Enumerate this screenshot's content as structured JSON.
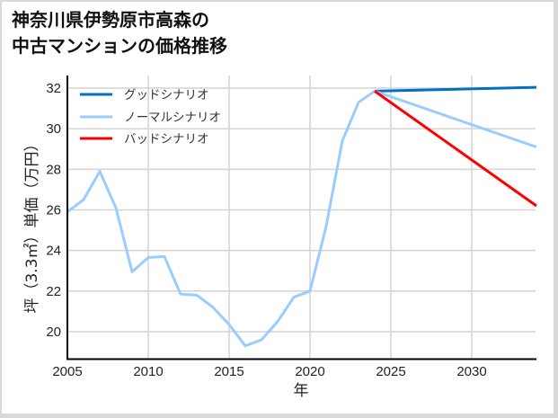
{
  "title": {
    "line1": "神奈川県伊勢原市高森の",
    "line2": "中古マンションの価格推移"
  },
  "axes": {
    "xlabel": "年",
    "ylabel": "坪（3.3㎡）単価（万円）",
    "xticks": [
      "2005",
      "2010",
      "2015",
      "2020",
      "2025",
      "2030"
    ],
    "yticks": [
      "20",
      "22",
      "24",
      "26",
      "28",
      "30",
      "32"
    ]
  },
  "legend": {
    "good": "グッドシナリオ",
    "normal": "ノーマルシナリオ",
    "bad": "バッドシナリオ"
  },
  "colors": {
    "good": "#0070c0",
    "normal": "#99ccff",
    "bad": "#ff0000",
    "grid": "#d3d3d3"
  },
  "chart_data": {
    "type": "line",
    "title": "神奈川県伊勢原市高森の中古マンションの価格推移",
    "xlabel": "年",
    "ylabel": "坪（3.3㎡）単価（万円）",
    "xlim": [
      2005,
      2034
    ],
    "ylim": [
      18.7,
      32.6
    ],
    "grid": true,
    "legend_position": "upper left",
    "series": [
      {
        "name": "ノーマルシナリオ (実績)",
        "color": "#99ccff",
        "x": [
          2005,
          2006,
          2007,
          2008,
          2009,
          2010,
          2011,
          2012,
          2013,
          2014,
          2015,
          2016,
          2017,
          2018,
          2019,
          2020,
          2021,
          2022,
          2023,
          2024
        ],
        "values": [
          25.9,
          26.5,
          27.9,
          26.1,
          22.95,
          23.65,
          23.7,
          21.85,
          21.8,
          21.2,
          20.35,
          19.3,
          19.6,
          20.5,
          21.7,
          22.0,
          25.2,
          29.4,
          31.3,
          31.85
        ]
      },
      {
        "name": "グッドシナリオ",
        "color": "#0070c0",
        "x": [
          2024,
          2034
        ],
        "values": [
          31.85,
          32.04
        ]
      },
      {
        "name": "ノーマルシナリオ",
        "color": "#99ccff",
        "x": [
          2024,
          2034
        ],
        "values": [
          31.85,
          29.1
        ]
      },
      {
        "name": "バッドシナリオ",
        "color": "#ff0000",
        "x": [
          2024,
          2034
        ],
        "values": [
          31.85,
          26.2
        ]
      }
    ]
  }
}
